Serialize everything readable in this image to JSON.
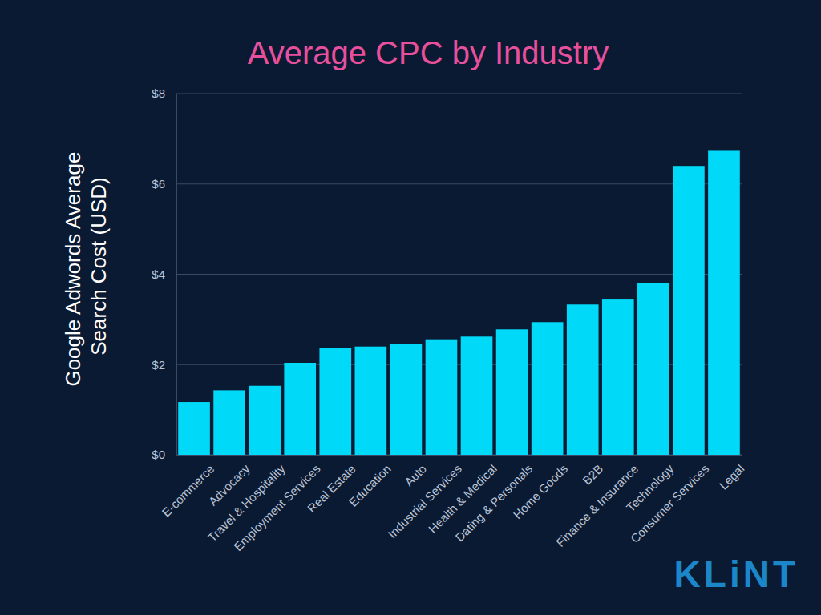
{
  "chart_data": {
    "type": "bar",
    "title": "Average CPC by Industry",
    "y_label": "Google Adwords Average Search Cost (USD)",
    "categories": [
      "E-commerce",
      "Advocacy",
      "Travel & Hospitality",
      "Employment Services",
      "Real Estate",
      "Education",
      "Auto",
      "Industrial Services",
      "Health & Medical",
      "Dating & Personals",
      "Home Goods",
      "B2B",
      "Finance & Insurance",
      "Technology",
      "Consumer Services",
      "Legal"
    ],
    "values": [
      1.17,
      1.43,
      1.53,
      2.04,
      2.37,
      2.4,
      2.46,
      2.56,
      2.62,
      2.78,
      2.94,
      3.33,
      3.44,
      3.8,
      6.4,
      6.75
    ],
    "color": "#00d9f7",
    "ylim": [
      0,
      8
    ],
    "yticks": [
      {
        "value": 0,
        "label": "$0"
      },
      {
        "value": 2,
        "label": "$2"
      },
      {
        "value": 4,
        "label": "$4"
      },
      {
        "value": 6,
        "label": "$6"
      },
      {
        "value": 8,
        "label": "$8"
      }
    ],
    "grid": true,
    "annotations": [
      "KLiNT"
    ]
  }
}
